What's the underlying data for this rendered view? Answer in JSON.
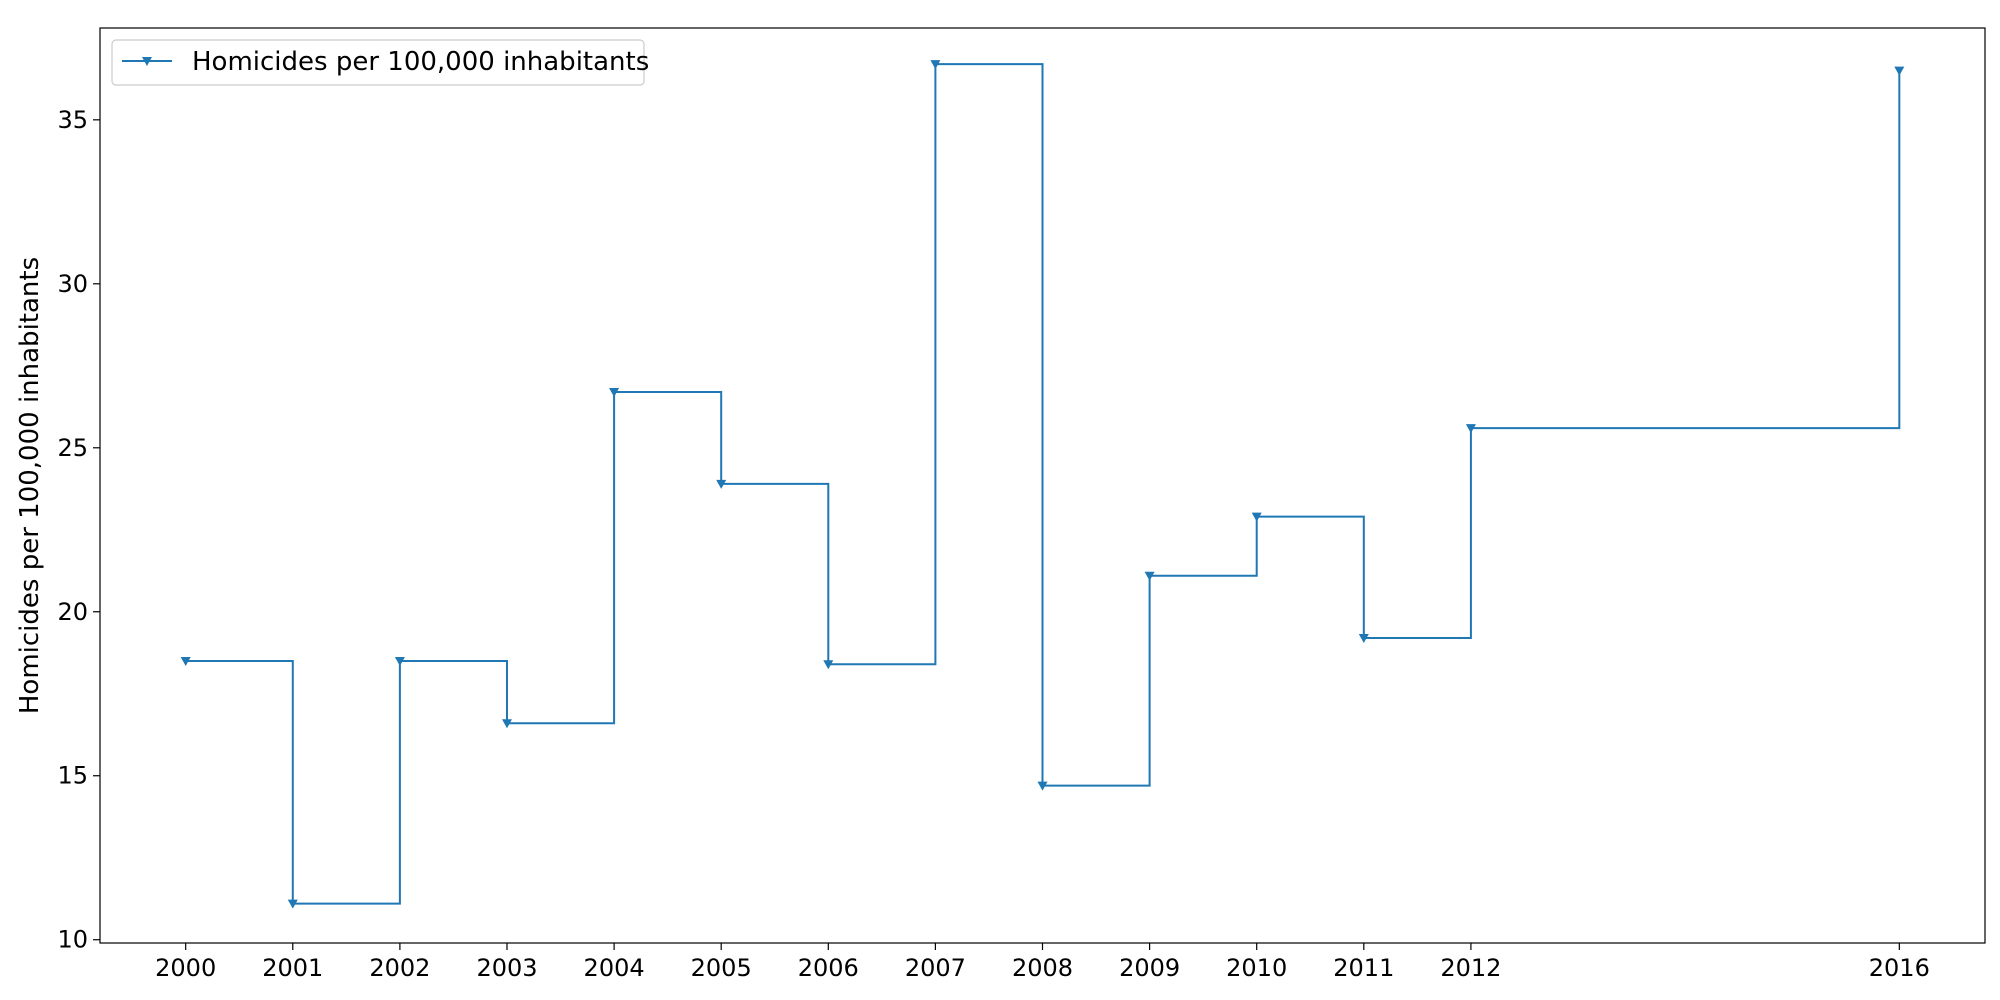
{
  "chart_data": {
    "type": "line",
    "drawstyle": "steps-post",
    "marker": "triangle-down",
    "title": "",
    "xlabel": "",
    "ylabel": "Homicides per 100,000 inhabitants",
    "x": [
      2000,
      2001,
      2002,
      2003,
      2004,
      2005,
      2006,
      2007,
      2008,
      2009,
      2010,
      2011,
      2012,
      2016
    ],
    "x_tick_labels": [
      "2000",
      "2001",
      "2002",
      "2003",
      "2004",
      "2005",
      "2006",
      "2007",
      "2008",
      "2009",
      "2010",
      "2011",
      "2012",
      "2016"
    ],
    "series": [
      {
        "name": "Homicides per 100,000 inhabitants",
        "color": "#1f77b4",
        "values": [
          18.5,
          11.1,
          18.5,
          16.6,
          26.7,
          23.9,
          18.4,
          36.7,
          14.7,
          21.1,
          22.9,
          19.2,
          25.6,
          36.5
        ]
      }
    ],
    "xlim": [
      1999.2,
      2016.8
    ],
    "ylim": [
      9.9,
      37.8
    ],
    "y_ticks": [
      10,
      15,
      20,
      25,
      30,
      35
    ],
    "y_tick_labels": [
      "10",
      "15",
      "20",
      "25",
      "30",
      "35"
    ],
    "grid": false,
    "legend": {
      "placement": "upper-left",
      "entries": [
        "Homicides per 100,000 inhabitants"
      ]
    }
  }
}
